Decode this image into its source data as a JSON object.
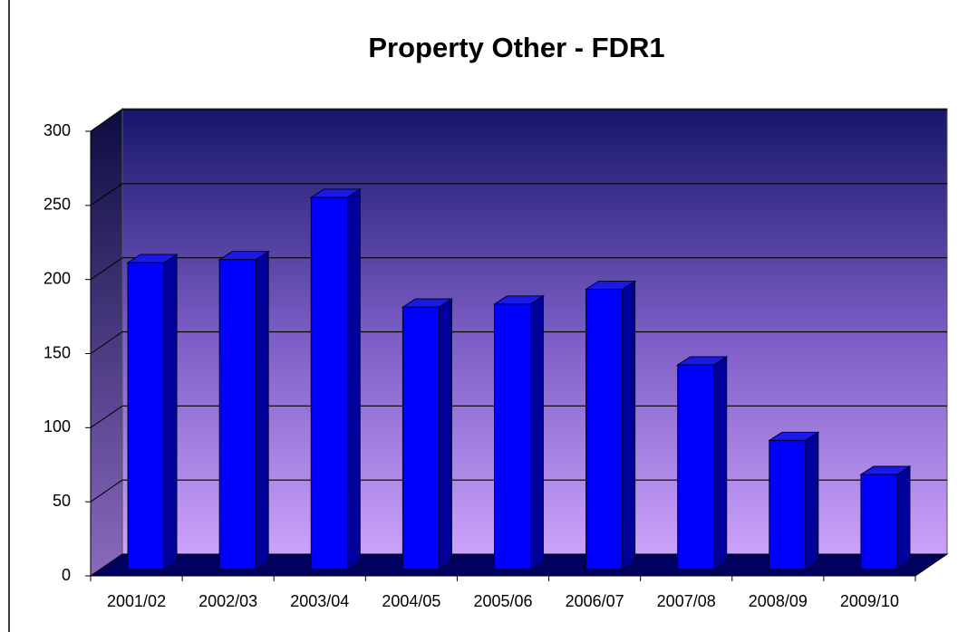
{
  "chart_data": {
    "type": "bar3d",
    "title": "Property Other - FDR1",
    "categories": [
      "2001/02",
      "2002/03",
      "2003/04",
      "2004/05",
      "2005/06",
      "2006/07",
      "2007/08",
      "2008/09",
      "2009/10"
    ],
    "values": [
      207,
      209,
      251,
      177,
      179,
      189,
      138,
      87,
      64
    ],
    "color": "#0000ff",
    "ylim": [
      0,
      300
    ],
    "yticks": [
      0,
      50,
      100,
      150,
      200,
      250,
      300
    ],
    "grid": true
  }
}
